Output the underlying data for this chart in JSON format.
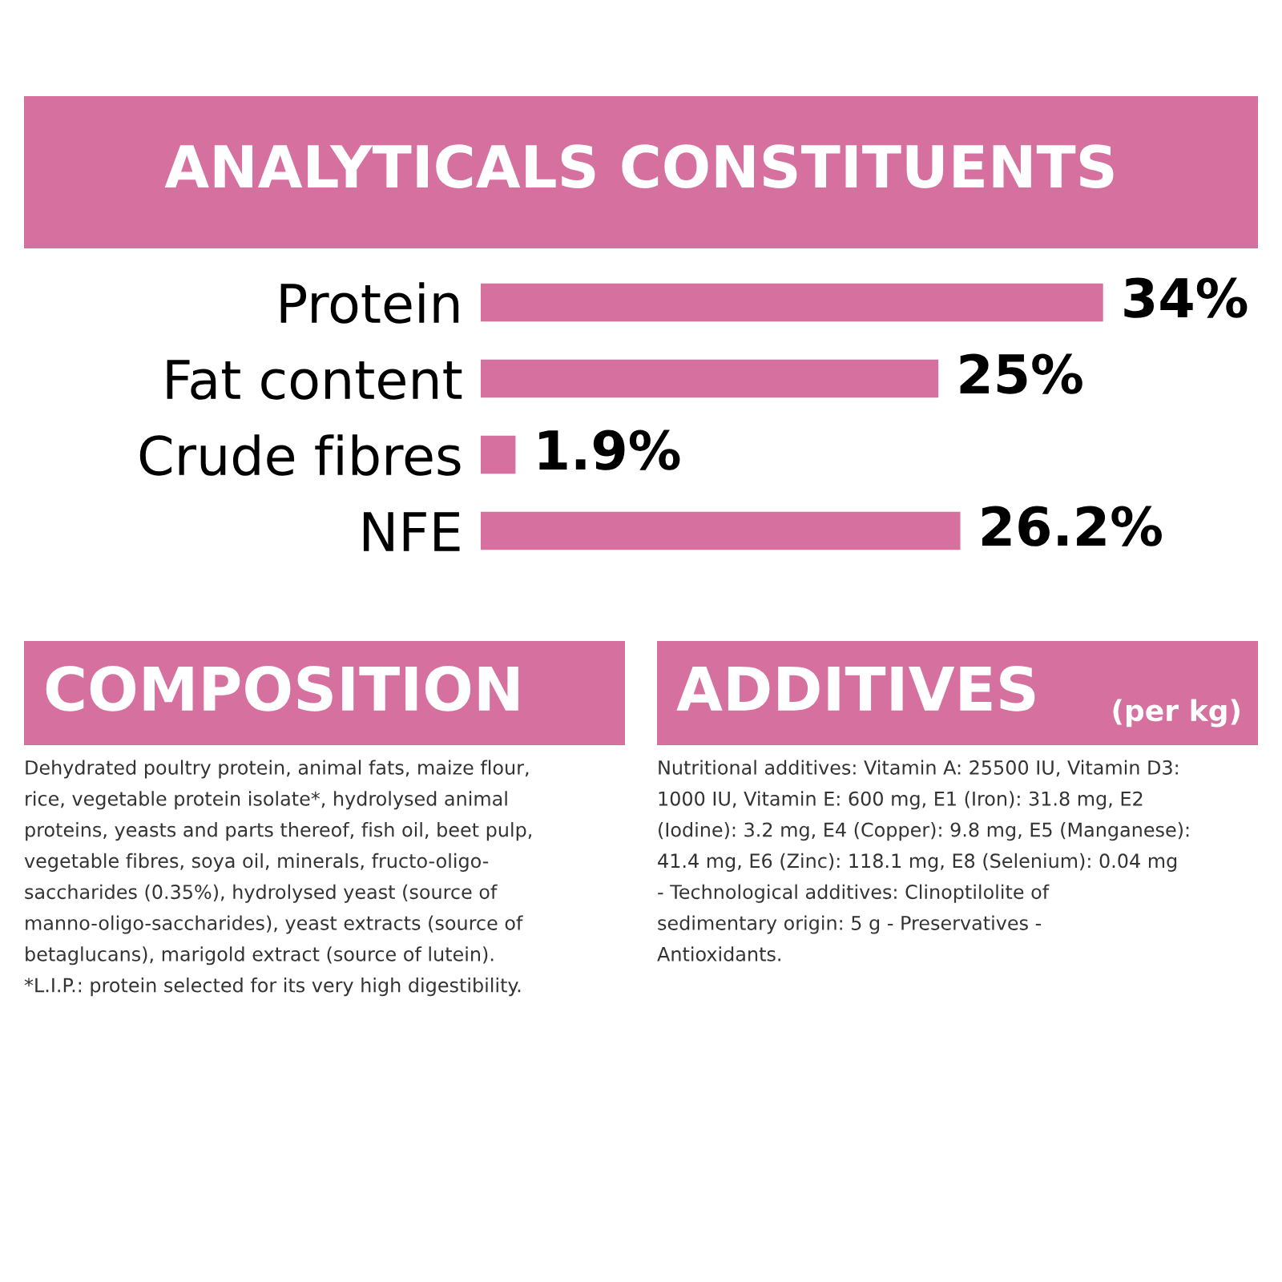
{
  "chart_data": [
    {
      "type": "bar",
      "orientation": "horizontal",
      "title": "ANALYTICALS CONSTITUENTS",
      "categories": [
        "Protein",
        "Fat content",
        "Crude fibres",
        "NFE"
      ],
      "values": [
        34,
        25,
        1.9,
        26.2
      ],
      "value_labels": [
        "34%",
        "25%",
        "1.9%",
        "26.2%"
      ],
      "color": "#d6719f",
      "grid": false,
      "legend": false
    },
    {
      "type": "other",
      "title": "COMPOSITION",
      "color": "#d6719f",
      "annotations": [
        "Dehydrated poultry protein, animal fats, maize flour,",
        "rice, vegetable protein isolate*, hydrolysed animal",
        "proteins, yeasts and parts thereof, fish oil, beet pulp,",
        "vegetable fibres, soya oil, minerals, fructo-oligo-",
        "saccharides (0.35%), hydrolysed yeast (source of",
        "manno-oligo-saccharides), yeast extracts (source of",
        "betaglucans), marigold extract (source of lutein).",
        "*L.I.P.: protein selected for its very high digestibility."
      ]
    },
    {
      "type": "other",
      "title": "ADDITIVES",
      "subtitle": "(per kg)",
      "color": "#d6719f",
      "annotations": [
        "Nutritional additives: Vitamin A: 25500 IU, Vitamin D3:",
        "1000 IU, Vitamin E: 600 mg, E1 (Iron): 31.8 mg, E2",
        "(Iodine): 3.2 mg, E4 (Copper): 9.8 mg, E5 (Manganese):",
        "41.4 mg, E6 (Zinc): 118.1 mg, E8 (Selenium): 0.04 mg",
        "- Technological additives: Clinoptilolite of",
        "sedimentary origin: 5 g - Preservatives -",
        "Antioxidants."
      ]
    }
  ]
}
